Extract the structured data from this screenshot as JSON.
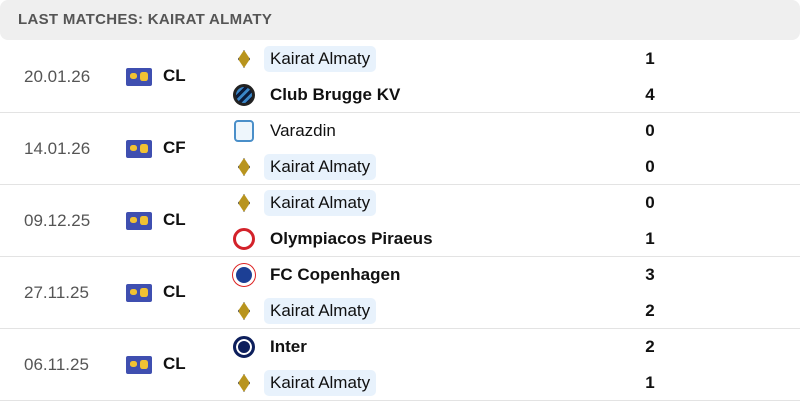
{
  "header": {
    "title": "LAST MATCHES: KAIRAT ALMATY"
  },
  "matches": [
    {
      "date": "20.01.26",
      "competition": "CL",
      "home": {
        "name": "Kairat Almaty",
        "score": "1",
        "logo": "kairat-almaty-logo"
      },
      "away": {
        "name": "Club Brugge KV",
        "score": "4",
        "logo": "club-brugge-logo"
      }
    },
    {
      "date": "14.01.26",
      "competition": "CF",
      "home": {
        "name": "Varazdin",
        "score": "0",
        "logo": "varazdin-logo"
      },
      "away": {
        "name": "Kairat Almaty",
        "score": "0",
        "logo": "kairat-almaty-logo"
      }
    },
    {
      "date": "09.12.25",
      "competition": "CL",
      "home": {
        "name": "Kairat Almaty",
        "score": "0",
        "logo": "kairat-almaty-logo"
      },
      "away": {
        "name": "Olympiacos Piraeus",
        "score": "1",
        "logo": "olympiacos-logo"
      }
    },
    {
      "date": "27.11.25",
      "competition": "CL",
      "home": {
        "name": "FC Copenhagen",
        "score": "3",
        "logo": "fc-copenhagen-logo"
      },
      "away": {
        "name": "Kairat Almaty",
        "score": "2",
        "logo": "kairat-almaty-logo"
      }
    },
    {
      "date": "06.11.25",
      "competition": "CL",
      "home": {
        "name": "Inter",
        "score": "2",
        "logo": "inter-logo"
      },
      "away": {
        "name": "Kairat Almaty",
        "score": "1",
        "logo": "kairat-almaty-logo"
      }
    }
  ],
  "colors": {
    "highlight": "#e8f2fc",
    "competition_flag": "#3f4fb0"
  }
}
